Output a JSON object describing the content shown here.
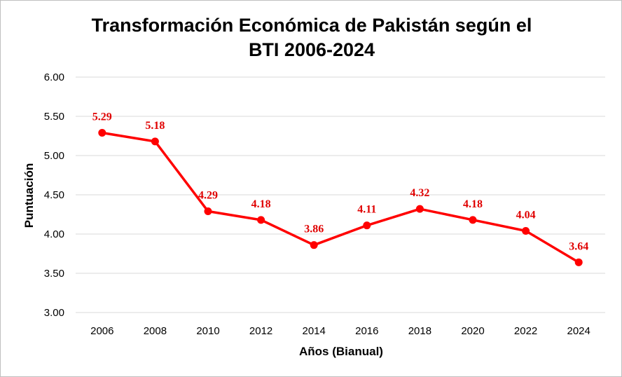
{
  "chart_data": {
    "type": "line",
    "title_lines": [
      "Transformación Económica de Pakistán según el",
      "BTI 2006-2024"
    ],
    "xlabel": "Años (Bianual)",
    "ylabel": "Puntuación",
    "categories": [
      "2006",
      "2008",
      "2010",
      "2012",
      "2014",
      "2016",
      "2018",
      "2020",
      "2022",
      "2024"
    ],
    "series": [
      {
        "values": [
          5.29,
          5.18,
          4.29,
          4.18,
          3.86,
          4.11,
          4.32,
          4.18,
          4.04,
          3.64
        ],
        "labels": [
          "5.29",
          "5.18",
          "4.29",
          "4.18",
          "3.86",
          "4.11",
          "4.32",
          "4.18",
          "4.04",
          "3.64"
        ],
        "color": "#ff0000",
        "label_color": "#e00000"
      }
    ],
    "ylim": [
      3.0,
      6.0
    ],
    "yticks": [
      3.0,
      3.5,
      4.0,
      4.5,
      5.0,
      5.5,
      6.0
    ],
    "ytick_labels": [
      "3.00",
      "3.50",
      "4.00",
      "4.50",
      "5.00",
      "5.50",
      "6.00"
    ],
    "grid": true,
    "legend": "none"
  }
}
